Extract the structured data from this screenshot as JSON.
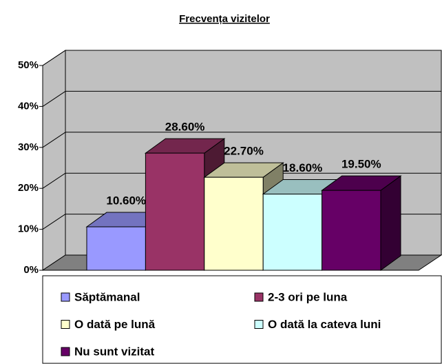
{
  "chart_data": {
    "type": "bar3d",
    "title": "Frecvența vizitelor",
    "categories": [
      "Săptămanal",
      "2-3 ori pe luna",
      "O dată pe lună",
      "O dată la cateva luni",
      "Nu sunt vizitat"
    ],
    "values": [
      10.6,
      28.6,
      22.7,
      18.6,
      19.5
    ],
    "value_labels": [
      "10.60%",
      "28.60%",
      "22.70%",
      "18.60%",
      "19.50%"
    ],
    "colors": [
      "#9999ff",
      "#993366",
      "#ffffcc",
      "#ccffff",
      "#660066"
    ],
    "ylim": [
      0,
      50
    ],
    "yticks": [
      {
        "value": 0,
        "label": "0%"
      },
      {
        "value": 10,
        "label": "10%"
      },
      {
        "value": 20,
        "label": "20%"
      },
      {
        "value": 30,
        "label": "30%"
      },
      {
        "value": 40,
        "label": "40%"
      },
      {
        "value": 50,
        "label": "50%"
      }
    ],
    "grid": true,
    "legend": "bottom"
  }
}
